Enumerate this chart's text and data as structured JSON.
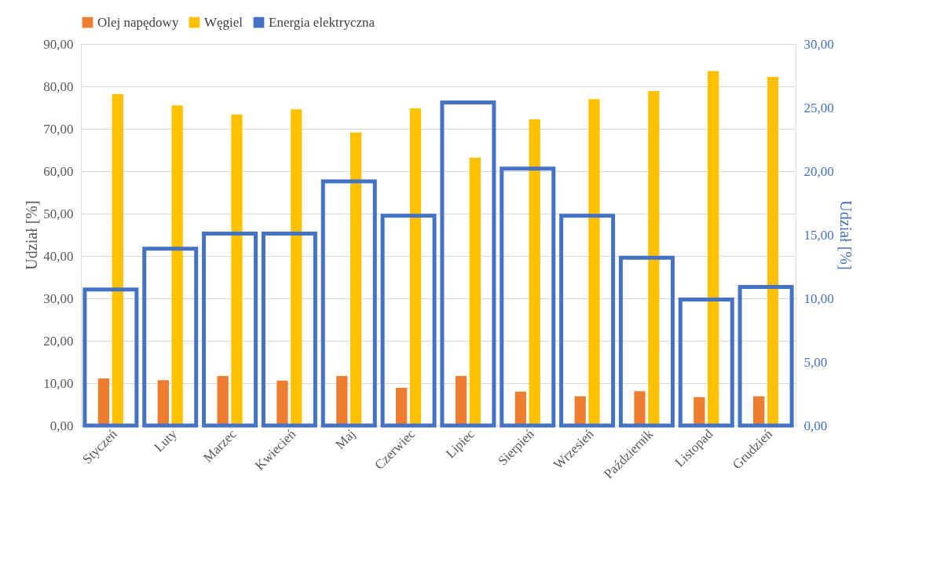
{
  "chart_data": {
    "type": "bar",
    "categories": [
      "Styczeń",
      "Luty",
      "Marzec",
      "Kwiecień",
      "Maj",
      "Czerwiec",
      "Lipiec",
      "Sierpień",
      "Wrzesień",
      "Październik",
      "Listopad",
      "Grudzień"
    ],
    "series": [
      {
        "name": "Olej napędowy",
        "color": "#ed7d31",
        "values": [
          11.1,
          10.7,
          11.7,
          10.6,
          11.7,
          8.9,
          11.7,
          8.0,
          6.9,
          8.1,
          6.7,
          6.9
        ]
      },
      {
        "name": "Węgiel",
        "color": "#ffc000",
        "values": [
          78.2,
          75.5,
          73.4,
          74.6,
          69.1,
          74.8,
          63.2,
          72.2,
          77.0,
          78.9,
          83.6,
          82.2
        ]
      },
      {
        "name": "Energia elektryczna",
        "color": "#4472c4",
        "axis": "y2",
        "type": "bar",
        "values": [
          10.7,
          13.9,
          15.1,
          15.1,
          19.2,
          16.5,
          25.4,
          20.2,
          16.5,
          13.2,
          9.9,
          10.9
        ]
      }
    ],
    "ylabel": "Udział [%]",
    "y2label": "Udział [%]",
    "ylim": [
      0,
      90
    ],
    "yticks": [
      {
        "value": 0,
        "label": "0,00"
      },
      {
        "value": 10,
        "label": "10,00"
      },
      {
        "value": 20,
        "label": "20,00"
      },
      {
        "value": 30,
        "label": "30,00"
      },
      {
        "value": 40,
        "label": "40,00"
      },
      {
        "value": 50,
        "label": "50,00"
      },
      {
        "value": 60,
        "label": "60,00"
      },
      {
        "value": 70,
        "label": "70,00"
      },
      {
        "value": 80,
        "label": "80,00"
      },
      {
        "value": 90,
        "label": "90,00"
      }
    ],
    "y2lim": [
      0,
      30
    ],
    "y2ticks": [
      {
        "value": 0,
        "label": "0,00"
      },
      {
        "value": 5,
        "label": "5,00"
      },
      {
        "value": 10,
        "label": "10,00"
      },
      {
        "value": 15,
        "label": "15,00"
      },
      {
        "value": 20,
        "label": "20,00"
      },
      {
        "value": 25,
        "label": "25,00"
      },
      {
        "value": 30,
        "label": "30,00"
      }
    ],
    "grid": "y",
    "legend": "top"
  }
}
